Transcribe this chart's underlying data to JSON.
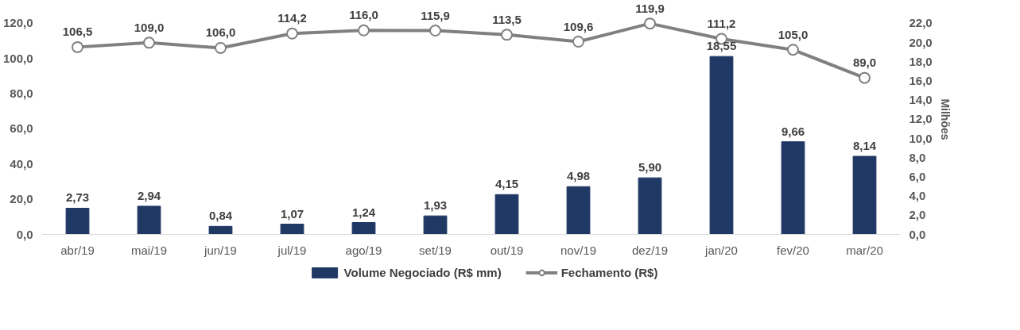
{
  "chart_data": {
    "type": "bar",
    "categories": [
      "abr/19",
      "mai/19",
      "jun/19",
      "jul/19",
      "ago/19",
      "set/19",
      "out/19",
      "nov/19",
      "dez/19",
      "jan/20",
      "fev/20",
      "mar/20"
    ],
    "y2label": "Milhões",
    "series": [
      {
        "name": "Volume Negociado (R$ mm)",
        "axis": "y2",
        "color": "#203864",
        "values": [
          2.73,
          2.94,
          0.84,
          1.07,
          1.24,
          1.93,
          4.15,
          4.98,
          5.9,
          18.55,
          9.66,
          8.14
        ],
        "value_labels": [
          "2,73",
          "2,94",
          "0,84",
          "1,07",
          "1,24",
          "1,93",
          "4,15",
          "4,98",
          "5,90",
          "18,55",
          "9,66",
          "8,14"
        ]
      },
      {
        "name": "Fechamento (R$)",
        "type": "line",
        "color": "#808080",
        "marker": "circle",
        "values": [
          106.5,
          109.0,
          106.0,
          114.2,
          116.0,
          115.9,
          113.5,
          109.6,
          119.9,
          111.2,
          105.0,
          89.0
        ],
        "value_labels": [
          "106,5",
          "109,0",
          "106,0",
          "114,2",
          "116,0",
          "115,9",
          "113,5",
          "109,6",
          "119,9",
          "111,2",
          "105,0",
          "89,0"
        ]
      }
    ],
    "ylim": [
      0,
      120
    ],
    "yticks": [
      {
        "value": 0,
        "label": "0,0"
      },
      {
        "value": 20,
        "label": "20,0"
      },
      {
        "value": 40,
        "label": "40,0"
      },
      {
        "value": 60,
        "label": "60,0"
      },
      {
        "value": 80,
        "label": "80,0"
      },
      {
        "value": 100,
        "label": "100,0"
      },
      {
        "value": 120,
        "label": "120,0"
      }
    ],
    "y2lim": [
      0,
      22
    ],
    "y2ticks": [
      {
        "value": 0,
        "label": "0,0"
      },
      {
        "value": 2,
        "label": "2,0"
      },
      {
        "value": 4,
        "label": "4,0"
      },
      {
        "value": 6,
        "label": "6,0"
      },
      {
        "value": 8,
        "label": "8,0"
      },
      {
        "value": 10,
        "label": "10,0"
      },
      {
        "value": 12,
        "label": "12,0"
      },
      {
        "value": 14,
        "label": "14,0"
      },
      {
        "value": 16,
        "label": "16,0"
      },
      {
        "value": 18,
        "label": "18,0"
      },
      {
        "value": 20,
        "label": "20,0"
      },
      {
        "value": 22,
        "label": "22,0"
      }
    ],
    "grid": false,
    "legend": "bottom"
  }
}
